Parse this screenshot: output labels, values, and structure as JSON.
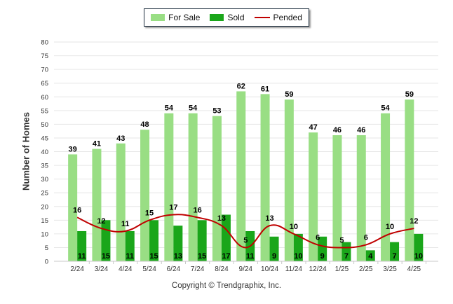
{
  "chart_data": {
    "type": "bar",
    "ylabel": "Number of Homes",
    "ylim": [
      0,
      80
    ],
    "yticks": [
      0,
      5,
      10,
      15,
      20,
      25,
      30,
      35,
      40,
      45,
      50,
      55,
      60,
      65,
      70,
      75,
      80
    ],
    "grid": true,
    "legend_position": "top-center",
    "categories": [
      "2/24",
      "3/24",
      "4/24",
      "5/24",
      "6/24",
      "7/24",
      "8/24",
      "9/24",
      "10/24",
      "11/24",
      "12/24",
      "1/25",
      "2/25",
      "3/25",
      "4/25"
    ],
    "series": [
      {
        "name": "For Sale",
        "type": "bar",
        "color": "#99de84",
        "values": [
          39,
          41,
          43,
          48,
          54,
          54,
          53,
          62,
          61,
          59,
          47,
          46,
          46,
          54,
          59
        ]
      },
      {
        "name": "Sold",
        "type": "bar",
        "color": "#1aa61a",
        "values": [
          11,
          15,
          11,
          15,
          13,
          15,
          17,
          11,
          9,
          10,
          9,
          7,
          4,
          7,
          10
        ]
      },
      {
        "name": "Pended",
        "type": "line",
        "color": "#c00000",
        "values": [
          16,
          12,
          11,
          15,
          17,
          16,
          13,
          5,
          13,
          10,
          6,
          5,
          6,
          10,
          12
        ]
      }
    ]
  },
  "legend": {
    "for_sale": "For Sale",
    "sold": "Sold",
    "pended": "Pended"
  },
  "footer": {
    "copyright": "Copyright © Trendgraphix, Inc."
  }
}
